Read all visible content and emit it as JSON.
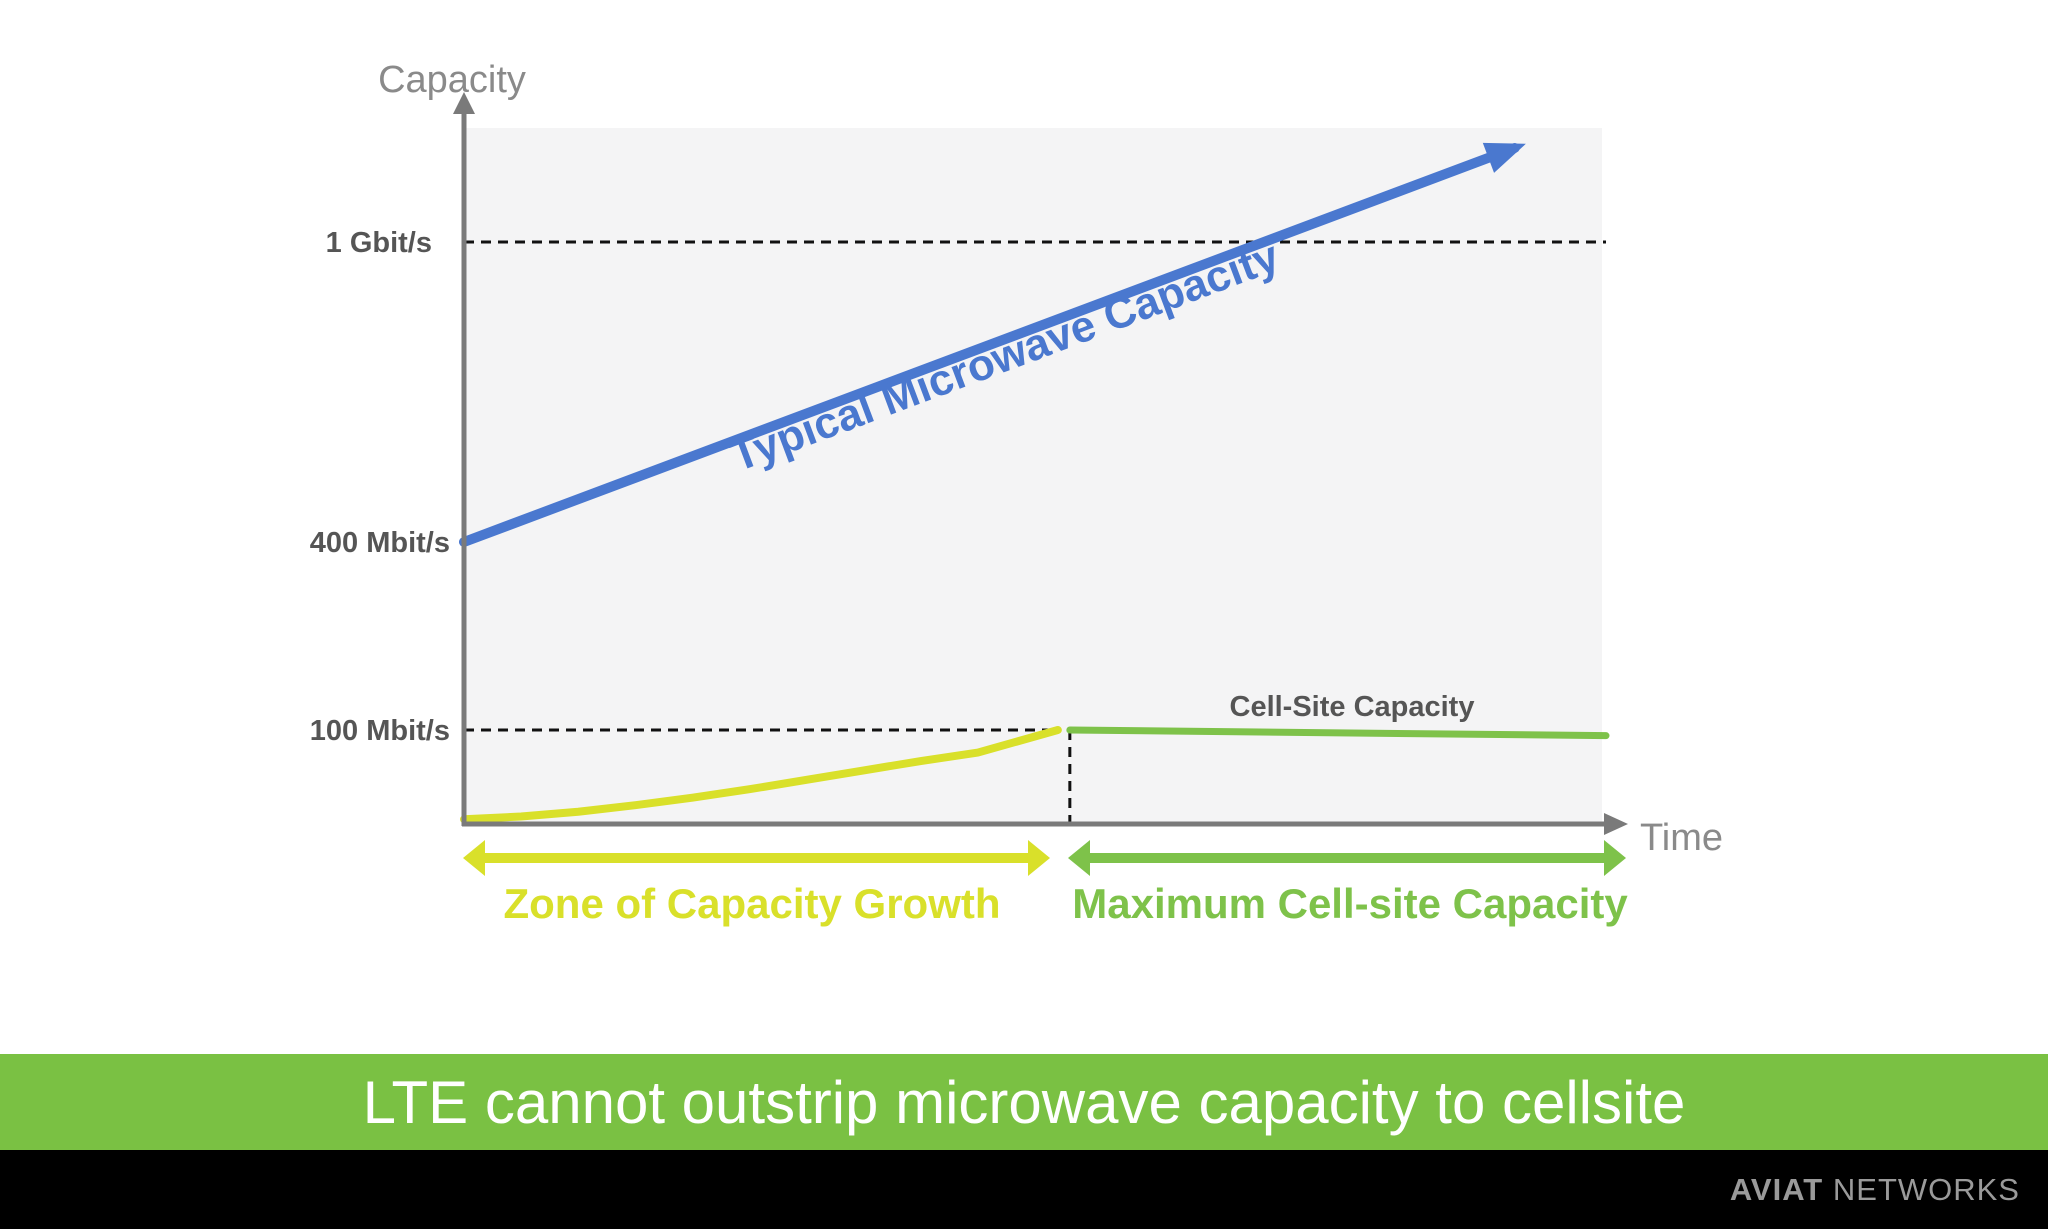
{
  "colors": {
    "plot_bg": "#f4f4f5",
    "axis": "#7a7a7a",
    "axis_title": "#8a8a8a",
    "tick_label": "#555555",
    "microwave": "#4a78cf",
    "growth": "#d9e02a",
    "cellsite": "#7ec24a",
    "banner_bg": "#7ac143",
    "footer_bg": "#000000"
  },
  "chart_data": {
    "type": "line",
    "xlabel": "Time",
    "ylabel": "Capacity",
    "y_ticks": [
      {
        "value": 100,
        "label": "100 Mbit/s"
      },
      {
        "value": 400,
        "label": "400 Mbit/s"
      },
      {
        "value": 1000,
        "label": "1 Gbit/s"
      }
    ],
    "x_range": [
      0,
      10
    ],
    "series": [
      {
        "name": "Typical Microwave Capacity",
        "points": [
          [
            0,
            400
          ],
          [
            9.2,
            1170
          ]
        ],
        "arrow_end": true
      },
      {
        "name": "",
        "points": [
          [
            0,
            5
          ],
          [
            0.5,
            8
          ],
          [
            1,
            13
          ],
          [
            1.5,
            20
          ],
          [
            2,
            28
          ],
          [
            2.5,
            37
          ],
          [
            3,
            47
          ],
          [
            3.5,
            57
          ],
          [
            4,
            67
          ],
          [
            4.5,
            76
          ],
          [
            5.2,
            100
          ]
        ]
      },
      {
        "name": "Cell-Site Capacity",
        "points": [
          [
            5.2,
            100
          ],
          [
            10,
            94
          ]
        ]
      }
    ],
    "reference_lines": [
      {
        "y": 1000,
        "x_to": 10
      },
      {
        "y": 100,
        "x_to": 5.2
      },
      {
        "x": 5.2,
        "y_to": 100
      }
    ],
    "zones": [
      {
        "label": "Zone of Capacity Growth",
        "x_range": [
          0,
          5.2
        ]
      },
      {
        "label": "Maximum Cell-site Capacity",
        "x_range": [
          5.2,
          10
        ]
      }
    ]
  },
  "banner": {
    "text": "LTE cannot outstrip microwave capacity to cellsite"
  },
  "logo": {
    "brand": "AVIAT",
    "suffix": "NETWORKS"
  }
}
